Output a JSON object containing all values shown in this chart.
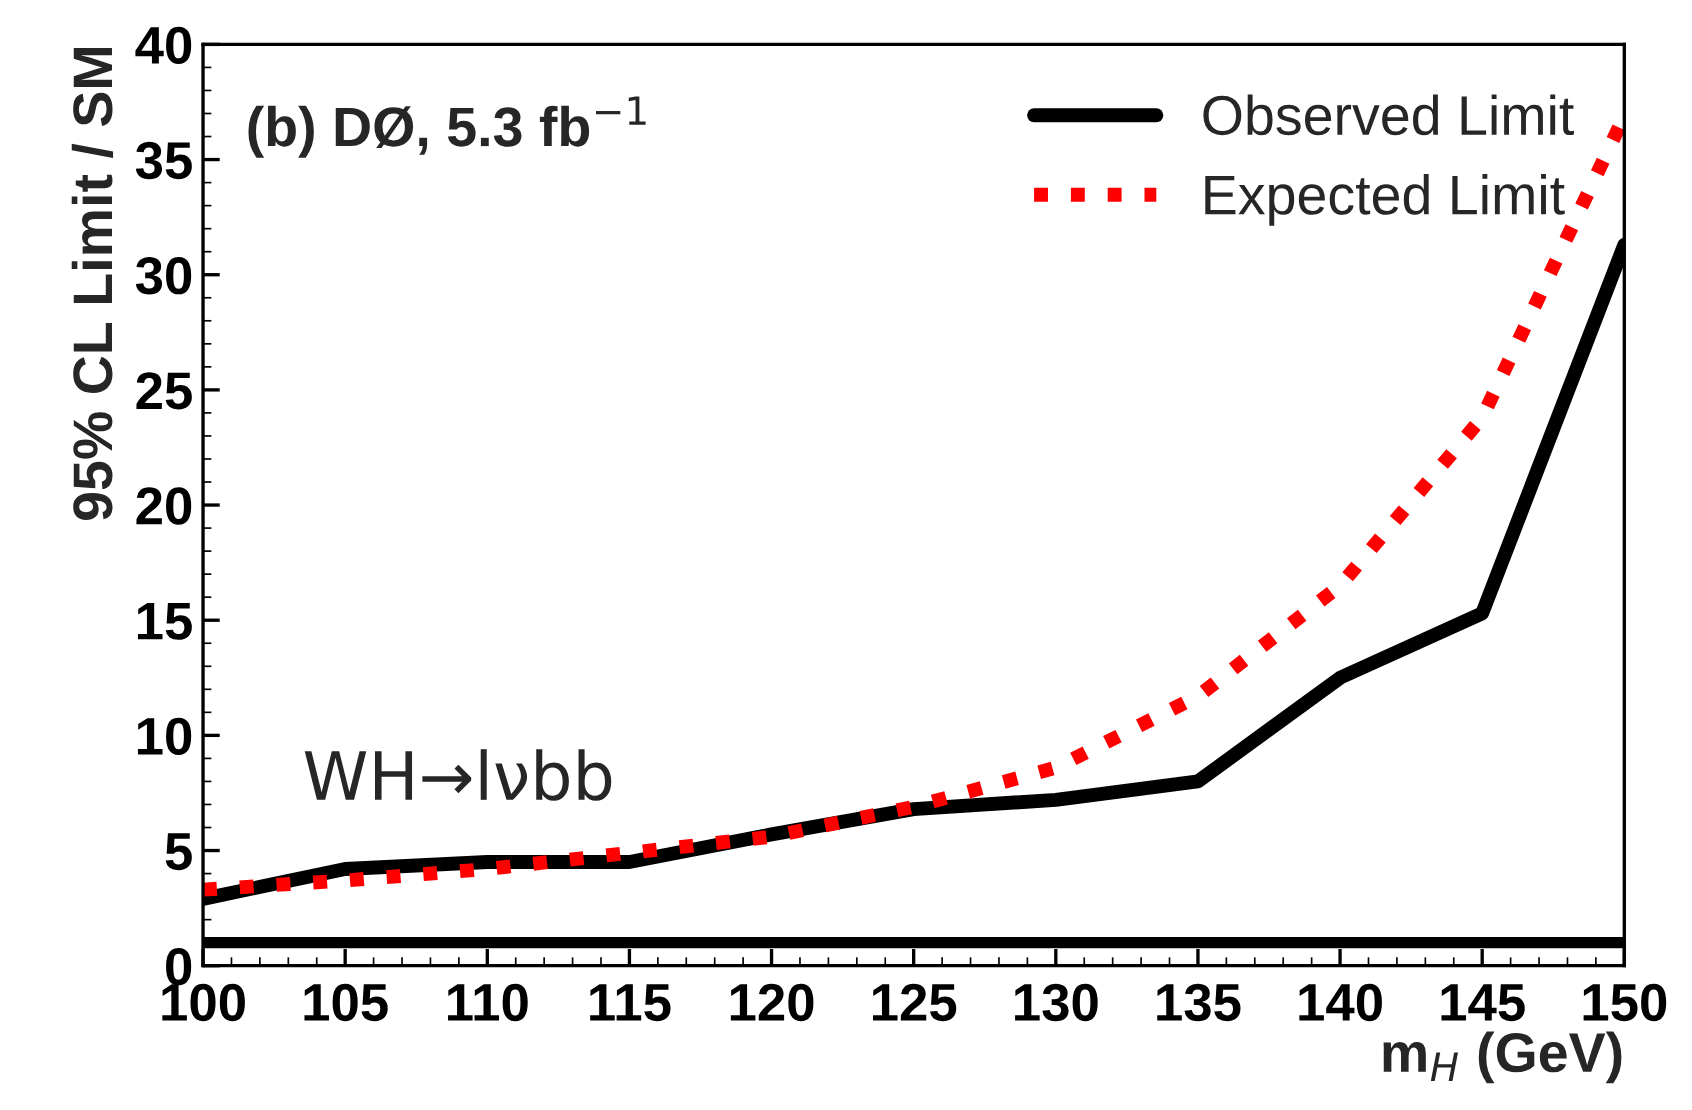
{
  "chart_data": {
    "type": "line",
    "xlabel": "m$_{H}$ (GeV)",
    "ylabel": "95% CL Limit / SM",
    "annotations": [
      "(b) DØ, 5.3 fb$^{−1}$",
      "WH→lνbb"
    ],
    "x": [
      100,
      105,
      110,
      115,
      120,
      125,
      130,
      135,
      140,
      145,
      150
    ],
    "series": [
      {
        "name": "Observed Limit",
        "color": "#000000",
        "line_style": "solid",
        "values": [
          2.9,
          4.2,
          4.5,
          4.5,
          5.7,
          6.8,
          7.2,
          8.0,
          12.5,
          15.3,
          31.3
        ]
      },
      {
        "name": "Expected Limit",
        "color": "#ff0000",
        "line_style": "dotted",
        "values": [
          3.3,
          3.7,
          4.2,
          4.9,
          5.6,
          6.9,
          8.6,
          11.7,
          16.5,
          23.8,
          36.9
        ]
      }
    ],
    "ref_lines": [
      {
        "axis": "y",
        "value": 1,
        "label": null,
        "color": "#000000"
      }
    ],
    "xlim": [
      100,
      150
    ],
    "ylim": [
      0,
      40
    ],
    "xticks": [
      100,
      105,
      110,
      115,
      120,
      125,
      130,
      135,
      140,
      145,
      150
    ],
    "yticks": [
      0,
      5,
      10,
      15,
      20,
      25,
      30,
      35,
      40
    ],
    "grid": false,
    "legend": "top right"
  }
}
